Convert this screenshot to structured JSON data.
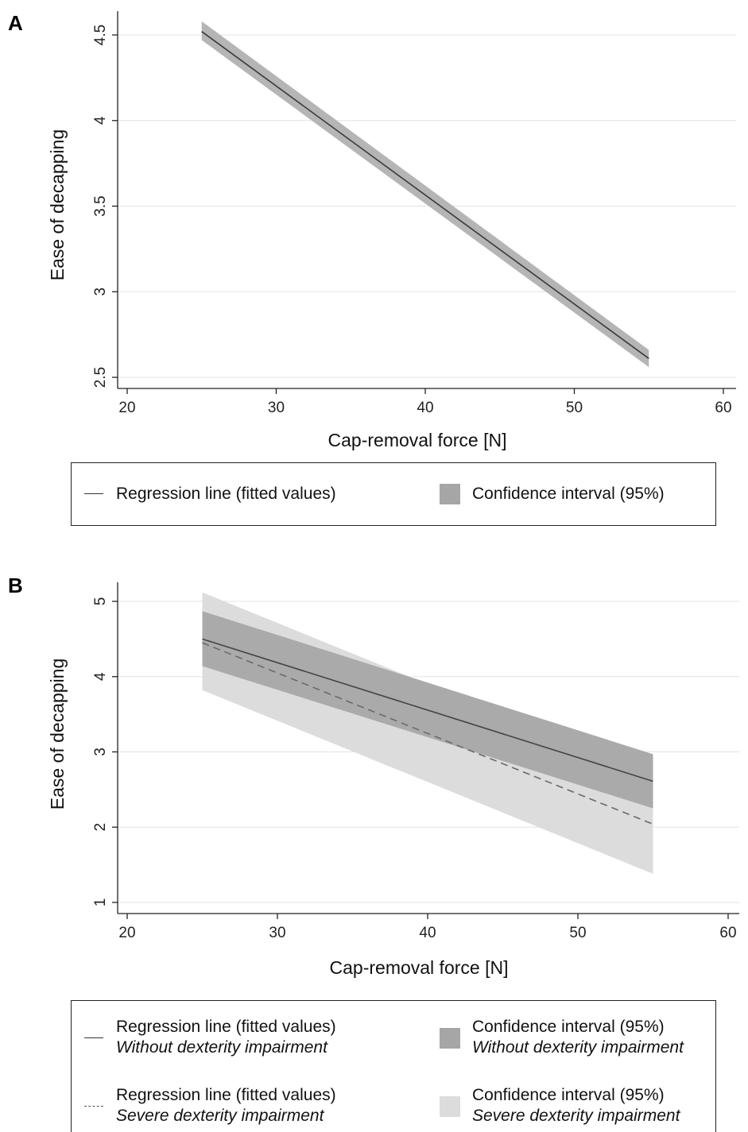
{
  "chart_data": [
    {
      "panel": "A",
      "type": "line",
      "xlabel": "Cap-removal force [N]",
      "ylabel": "Ease of decapping",
      "xlim": [
        20,
        60
      ],
      "ylim": [
        2.5,
        4.5
      ],
      "x_ticks": [
        "20",
        "30",
        "40",
        "50",
        "60"
      ],
      "y_ticks": [
        "2.5",
        "3",
        "3.5",
        "4",
        "4.5"
      ],
      "grid": "horizontal",
      "series": [
        {
          "name": "Regression line (fitted values)",
          "style": "solid",
          "x": [
            25,
            55
          ],
          "y": [
            4.52,
            2.61
          ],
          "ci_lower": [
            4.47,
            2.56
          ],
          "ci_upper": [
            4.58,
            2.66
          ],
          "ci_name": "Confidence interval (95%)",
          "line_color": "#3a3a3a",
          "ci_color": "#b5b5b5"
        }
      ],
      "legend": {
        "placement": "bottom",
        "items": [
          {
            "symbol": "line",
            "label": "Regression line (fitted values)"
          },
          {
            "symbol": "box",
            "color": "#a6a6a6",
            "label": "Confidence interval (95%)"
          }
        ]
      }
    },
    {
      "panel": "B",
      "type": "line",
      "xlabel": "Cap-removal force [N]",
      "ylabel": "Ease of decapping",
      "xlim": [
        20,
        60
      ],
      "ylim": [
        1,
        5
      ],
      "x_ticks": [
        "20",
        "30",
        "40",
        "50",
        "60"
      ],
      "y_ticks": [
        "1",
        "2",
        "3",
        "4",
        "5"
      ],
      "grid": "horizontal",
      "series": [
        {
          "name": "Severe dexterity impairment",
          "style": "dashed",
          "x": [
            25,
            55
          ],
          "y": [
            4.45,
            2.04
          ],
          "ci_lower": [
            3.82,
            1.38
          ],
          "ci_upper": [
            5.12,
            2.68
          ],
          "line_color": "#6a6a6a",
          "ci_color": "#dcdcdc"
        },
        {
          "name": "Without dexterity impairment",
          "style": "solid",
          "x": [
            25,
            55
          ],
          "y": [
            4.5,
            2.61
          ],
          "ci_lower": [
            4.14,
            2.25
          ],
          "ci_upper": [
            4.87,
            2.97
          ],
          "line_color": "#444444",
          "ci_color": "#aaaaaa"
        }
      ],
      "legend": {
        "placement": "bottom",
        "items": [
          {
            "symbol": "line",
            "label": "Regression line (fitted values)",
            "sublabel": "Without dexterity impairment"
          },
          {
            "symbol": "box",
            "color": "#a6a6a6",
            "label": "Confidence interval (95%)",
            "sublabel": "Without dexterity impairment"
          },
          {
            "symbol": "dash",
            "label": "Regression line (fitted values)",
            "sublabel": "Severe dexterity impairment"
          },
          {
            "symbol": "box",
            "color": "#dcdcdc",
            "label": "Confidence interval (95%)",
            "sublabel": "Severe dexterity impairment"
          }
        ]
      }
    }
  ]
}
